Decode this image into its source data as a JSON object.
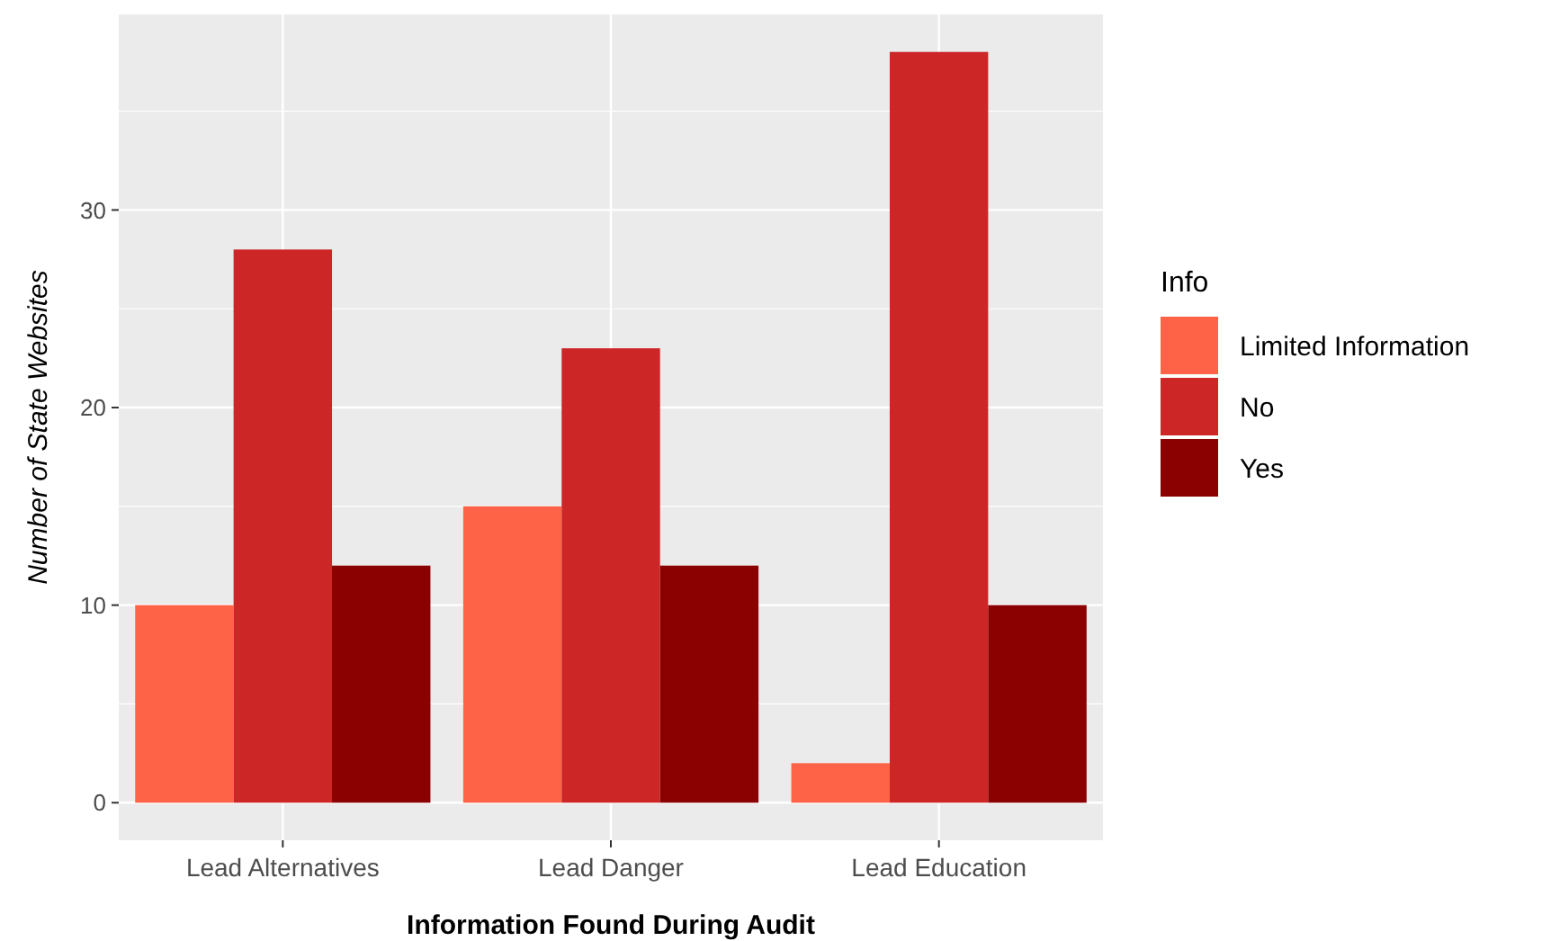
{
  "chart_data": {
    "type": "bar",
    "xlabel": "Information Found During Audit",
    "ylabel": "Number of State Websites",
    "legend_title": "Info",
    "categories": [
      "Lead Alternatives",
      "Lead Danger",
      "Lead Education"
    ],
    "series": [
      {
        "name": "Limited Information",
        "color": "#ff6347",
        "values": [
          10,
          15,
          2
        ]
      },
      {
        "name": "No",
        "color": "#cd2626",
        "values": [
          28,
          23,
          38
        ]
      },
      {
        "name": "Yes",
        "color": "#8b0000",
        "values": [
          12,
          12,
          10
        ]
      }
    ],
    "ylim": [
      -1.9,
      39.9
    ],
    "yticks": [
      0,
      10,
      20,
      30
    ],
    "grid": true,
    "legend": "right"
  }
}
